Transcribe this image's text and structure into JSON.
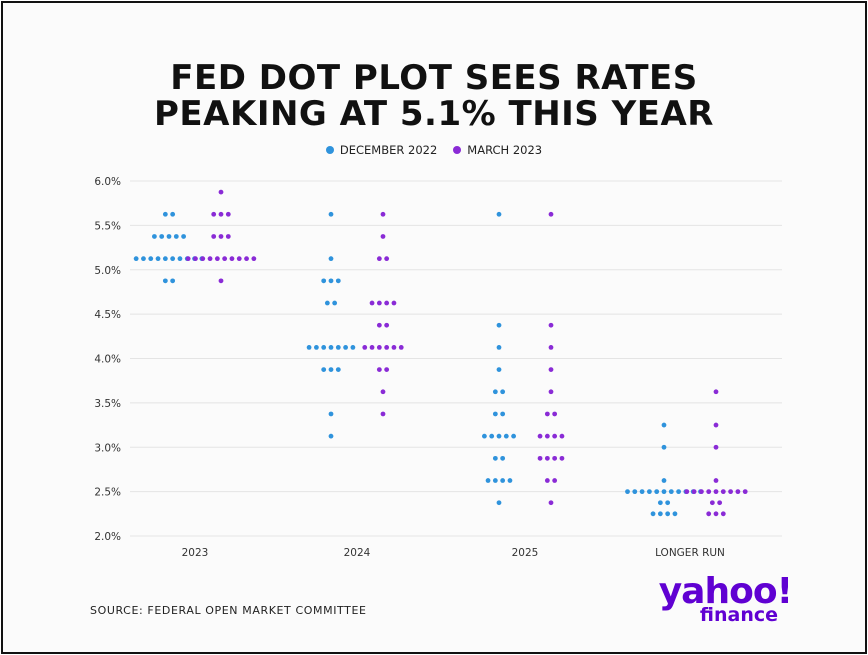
{
  "title": {
    "line1": "FED DOT PLOT SEES RATES",
    "line2": "PEAKING AT 5.1% THIS YEAR"
  },
  "legend": [
    {
      "label": "DECEMBER 2022",
      "color": "#2f93dc"
    },
    {
      "label": "MARCH 2023",
      "color": "#8a2bd6"
    }
  ],
  "source": "SOURCE:  FEDERAL OPEN MARKET COMMITTEE",
  "logo": {
    "line1": "yahoo!",
    "line2": "finance",
    "color": "#6001d2"
  },
  "chart_data": {
    "type": "scatter",
    "categories": [
      "2023",
      "2024",
      "2025",
      "LONGER RUN"
    ],
    "y_ticks": [
      "6.0%",
      "5.5%",
      "5.0%",
      "4.5%",
      "4.0%",
      "3.5%",
      "3.0%",
      "2.5%",
      "2.0%"
    ],
    "ylim": [
      2.0,
      6.0
    ],
    "grid": true,
    "legend_position": "top-center",
    "series": [
      {
        "name": "DECEMBER 2022",
        "color": "#2f93dc",
        "dots": [
          [
            [
              5.625,
              2
            ],
            [
              5.375,
              5
            ],
            [
              5.125,
              10
            ],
            [
              4.875,
              2
            ]
          ],
          [
            [
              5.625,
              1
            ],
            [
              5.125,
              1
            ],
            [
              4.875,
              3
            ],
            [
              4.625,
              2
            ],
            [
              4.125,
              7
            ],
            [
              3.875,
              3
            ],
            [
              3.375,
              1
            ],
            [
              3.125,
              1
            ]
          ],
          [
            [
              5.625,
              1
            ],
            [
              4.375,
              1
            ],
            [
              4.125,
              1
            ],
            [
              3.875,
              1
            ],
            [
              3.625,
              2
            ],
            [
              3.375,
              2
            ],
            [
              3.125,
              5
            ],
            [
              2.875,
              2
            ],
            [
              2.625,
              4
            ],
            [
              2.375,
              1
            ]
          ],
          [
            [
              3.25,
              1
            ],
            [
              3.0,
              1
            ],
            [
              2.625,
              1
            ],
            [
              2.5,
              11
            ],
            [
              2.375,
              2
            ],
            [
              2.25,
              4
            ]
          ]
        ]
      },
      {
        "name": "MARCH 2023",
        "color": "#8a2bd6",
        "dots": [
          [
            [
              5.875,
              1
            ],
            [
              5.625,
              3
            ],
            [
              5.375,
              3
            ],
            [
              5.125,
              10
            ],
            [
              4.875,
              1
            ]
          ],
          [
            [
              5.625,
              1
            ],
            [
              5.375,
              1
            ],
            [
              5.125,
              2
            ],
            [
              4.625,
              4
            ],
            [
              4.375,
              2
            ],
            [
              4.125,
              6
            ],
            [
              3.875,
              2
            ],
            [
              3.625,
              1
            ],
            [
              3.375,
              1
            ]
          ],
          [
            [
              5.625,
              1
            ],
            [
              4.375,
              1
            ],
            [
              4.125,
              1
            ],
            [
              3.875,
              1
            ],
            [
              3.625,
              1
            ],
            [
              3.375,
              2
            ],
            [
              3.125,
              4
            ],
            [
              2.875,
              4
            ],
            [
              2.625,
              2
            ],
            [
              2.375,
              1
            ]
          ],
          [
            [
              3.625,
              1
            ],
            [
              3.25,
              1
            ],
            [
              3.0,
              1
            ],
            [
              2.625,
              1
            ],
            [
              2.5,
              9
            ],
            [
              2.375,
              2
            ],
            [
              2.25,
              3
            ]
          ]
        ]
      }
    ]
  }
}
